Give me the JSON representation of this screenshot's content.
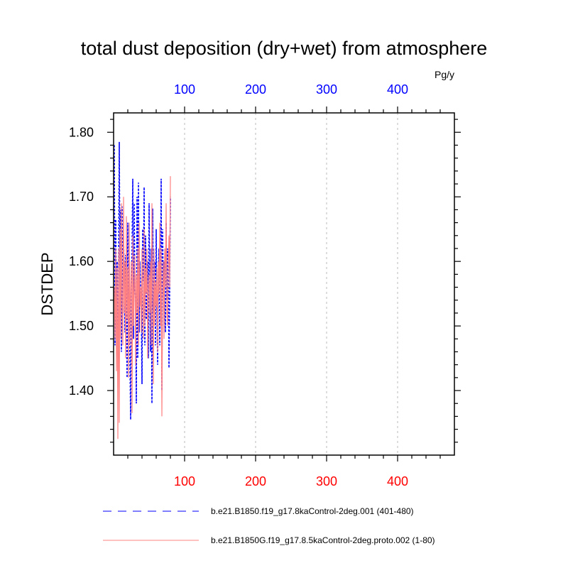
{
  "chart_data": {
    "type": "line",
    "title": "total dust deposition (dry+wet) from atmosphere",
    "units": "Pg/y",
    "ylabel": "DSTDEP",
    "xlabel": "",
    "xlim": [
      0,
      480
    ],
    "ylim": [
      1.3,
      1.83
    ],
    "yticks": [
      1.4,
      1.5,
      1.6,
      1.7,
      1.8
    ],
    "ytick_labels": [
      "1.40",
      "1.50",
      "1.60",
      "1.70",
      "1.80"
    ],
    "xticks": [
      100,
      200,
      300,
      400
    ],
    "xtick_labels_bottom": [
      "100",
      "200",
      "300",
      "400"
    ],
    "xtick_labels_top": [
      "100",
      "200",
      "300",
      "400"
    ],
    "bottom_axis_color": "#ff0000",
    "top_axis_color": "#0000ff",
    "grid": "vertical dashed at major x ticks",
    "legend_position": "bottom",
    "series": [
      {
        "name": "b.e21.B1850.f19_g17.8kaControl-2deg.001 (401-480)",
        "color": "#0000ff",
        "style": "dashed",
        "x": [
          1,
          2,
          3,
          4,
          5,
          6,
          7,
          8,
          9,
          10,
          11,
          12,
          13,
          14,
          15,
          16,
          17,
          18,
          19,
          20,
          21,
          22,
          23,
          24,
          25,
          26,
          27,
          28,
          29,
          30,
          31,
          32,
          33,
          34,
          35,
          36,
          37,
          38,
          39,
          40,
          41,
          42,
          43,
          44,
          45,
          46,
          47,
          48,
          49,
          50,
          51,
          52,
          53,
          54,
          55,
          56,
          57,
          58,
          59,
          60,
          61,
          62,
          63,
          64,
          65,
          66,
          67,
          68,
          69,
          70,
          71,
          72,
          73,
          74,
          75,
          76,
          77,
          78,
          79,
          80
        ],
        "values": [
          1.78,
          1.47,
          1.665,
          1.52,
          1.6,
          1.44,
          1.575,
          1.785,
          1.56,
          1.68,
          1.46,
          1.685,
          1.52,
          1.64,
          1.58,
          1.49,
          1.61,
          1.55,
          1.42,
          1.66,
          1.5,
          1.59,
          1.45,
          1.355,
          1.56,
          1.62,
          1.728,
          1.48,
          1.69,
          1.56,
          1.54,
          1.38,
          1.7,
          1.45,
          1.722,
          1.49,
          1.6,
          1.56,
          1.53,
          1.41,
          1.65,
          1.57,
          1.715,
          1.47,
          1.64,
          1.51,
          1.53,
          1.6,
          1.45,
          1.69,
          1.55,
          1.46,
          1.62,
          1.38,
          1.682,
          1.52,
          1.56,
          1.6,
          1.47,
          1.65,
          1.53,
          1.44,
          1.58,
          1.62,
          1.47,
          1.56,
          1.728,
          1.4,
          1.65,
          1.56,
          1.6,
          1.52,
          1.49,
          1.66,
          1.54,
          1.62,
          1.6,
          1.435,
          1.56,
          1.7
        ]
      },
      {
        "name": "b.e21.B1850G.f19_g17.8.5kaControl-2deg.proto.002 (1-80)",
        "color": "#ff8080",
        "style": "solid",
        "x": [
          1,
          2,
          3,
          4,
          5,
          6,
          7,
          8,
          9,
          10,
          11,
          12,
          13,
          14,
          15,
          16,
          17,
          18,
          19,
          20,
          21,
          22,
          23,
          24,
          25,
          26,
          27,
          28,
          29,
          30,
          31,
          32,
          33,
          34,
          35,
          36,
          37,
          38,
          39,
          40,
          41,
          42,
          43,
          44,
          45,
          46,
          47,
          48,
          49,
          50,
          51,
          52,
          53,
          54,
          55,
          56,
          57,
          58,
          59,
          60,
          61,
          62,
          63,
          64,
          65,
          66,
          67,
          68,
          69,
          70,
          71,
          72,
          73,
          74,
          75,
          76,
          77,
          78,
          79,
          80
        ],
        "values": [
          1.56,
          1.48,
          1.62,
          1.43,
          1.59,
          1.325,
          1.62,
          1.35,
          1.65,
          1.48,
          1.69,
          1.54,
          1.47,
          1.7,
          1.52,
          1.6,
          1.45,
          1.67,
          1.51,
          1.59,
          1.42,
          1.66,
          1.47,
          1.56,
          1.6,
          1.365,
          1.64,
          1.5,
          1.56,
          1.61,
          1.44,
          1.58,
          1.52,
          1.62,
          1.47,
          1.66,
          1.53,
          1.56,
          1.49,
          1.62,
          1.54,
          1.48,
          1.65,
          1.5,
          1.59,
          1.55,
          1.62,
          1.45,
          1.56,
          1.58,
          1.52,
          1.6,
          1.47,
          1.69,
          1.54,
          1.41,
          1.62,
          1.5,
          1.57,
          1.53,
          1.59,
          1.46,
          1.6,
          1.55,
          1.66,
          1.5,
          1.62,
          1.36,
          1.54,
          1.6,
          1.48,
          1.62,
          1.56,
          1.69,
          1.52,
          1.5,
          1.6,
          1.64,
          1.56,
          1.732
        ]
      }
    ]
  }
}
